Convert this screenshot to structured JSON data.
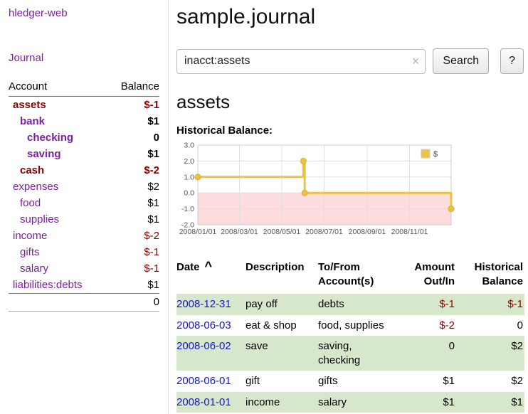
{
  "app_title": "hledger-web",
  "sidebar": {
    "journal_link": "Journal",
    "accounts_table": {
      "account_header": "Account",
      "balance_header": "Balance",
      "rows": [
        {
          "name": "assets",
          "balance": "$-1",
          "indent": 0,
          "bold": true,
          "name_style": "negative",
          "balance_style": "negative"
        },
        {
          "name": "bank",
          "balance": "$1",
          "indent": 1,
          "bold": true,
          "name_style": "link",
          "balance_style": "normal"
        },
        {
          "name": "checking",
          "balance": "0",
          "indent": 2,
          "bold": true,
          "name_style": "link",
          "balance_style": "normal"
        },
        {
          "name": "saving",
          "balance": "$1",
          "indent": 2,
          "bold": true,
          "name_style": "link",
          "balance_style": "normal"
        },
        {
          "name": "cash",
          "balance": "$-2",
          "indent": 1,
          "bold": true,
          "name_style": "negative",
          "balance_style": "negative"
        },
        {
          "name": "expenses",
          "balance": "$2",
          "indent": 0,
          "bold": false,
          "name_style": "link",
          "balance_style": "normal"
        },
        {
          "name": "food",
          "balance": "$1",
          "indent": 1,
          "bold": false,
          "name_style": "link",
          "balance_style": "normal"
        },
        {
          "name": "supplies",
          "balance": "$1",
          "indent": 1,
          "bold": false,
          "name_style": "link",
          "balance_style": "normal"
        },
        {
          "name": "income",
          "balance": "$-2",
          "indent": 0,
          "bold": false,
          "name_style": "link",
          "balance_style": "negative"
        },
        {
          "name": "gifts",
          "balance": "$-1",
          "indent": 1,
          "bold": false,
          "name_style": "link",
          "balance_style": "negative"
        },
        {
          "name": "salary",
          "balance": "$-1",
          "indent": 1,
          "bold": false,
          "name_style": "link",
          "balance_style": "negative"
        },
        {
          "name": "liabilities:debts",
          "balance": "$1",
          "indent": 0,
          "bold": false,
          "name_style": "link",
          "balance_style": "normal"
        }
      ],
      "total": "0"
    }
  },
  "main": {
    "title": "sample.journal",
    "search": {
      "value": "inacct:assets",
      "clear_icon": "×",
      "search_button": "Search",
      "help_button": "?"
    },
    "account_heading": "assets",
    "chart_title": "Historical Balance:"
  },
  "chart_data": {
    "type": "line",
    "step": true,
    "title": "Historical Balance",
    "series": [
      {
        "name": "$",
        "color": "#edc240",
        "points": [
          [
            "2008-01-01",
            1
          ],
          [
            "2008-06-01",
            2
          ],
          [
            "2008-06-03",
            0
          ],
          [
            "2008-12-31",
            -1
          ]
        ]
      }
    ],
    "x_domain": [
      "2008-01-01",
      "2008-12-31"
    ],
    "x_ticks": [
      "2008/01/01",
      "2008/03/01",
      "2008/05/01",
      "2008/07/01",
      "2008/09/01",
      "2008/11/01"
    ],
    "y_ticks": [
      3.0,
      2.0,
      1.0,
      0.0,
      -1.0,
      -2.0
    ],
    "ylim": [
      -2,
      3
    ],
    "grid": true,
    "negative_region_color": "#fcdcdc",
    "legend_label": "$",
    "legend_position": "top-right"
  },
  "transactions": {
    "headers": {
      "date": "Date",
      "description": "Description",
      "account": "To/From Account(s)",
      "amount": "Amount Out/In",
      "balance": "Historical Balance"
    },
    "sort_icon": "^",
    "rows": [
      {
        "date": "2008-12-31",
        "description": "pay off",
        "account": "debts",
        "amount": "$-1",
        "amount_negative": true,
        "balance": "$-1",
        "balance_negative": true,
        "shaded": true
      },
      {
        "date": "2008-06-03",
        "description": "eat & shop",
        "account": "food, supplies",
        "amount": "$-2",
        "amount_negative": true,
        "balance": "0",
        "balance_negative": false,
        "shaded": false
      },
      {
        "date": "2008-06-02",
        "description": "save",
        "account": "saving, checking",
        "amount": "0",
        "amount_negative": false,
        "balance": "$2",
        "balance_negative": false,
        "shaded": true
      },
      {
        "date": "2008-06-01",
        "description": "gift",
        "account": "gifts",
        "amount": "$1",
        "amount_negative": false,
        "balance": "$2",
        "balance_negative": false,
        "shaded": false
      },
      {
        "date": "2008-01-01",
        "description": "income",
        "account": "salary",
        "amount": "$1",
        "amount_negative": false,
        "balance": "$1",
        "balance_negative": false,
        "shaded": true
      }
    ]
  },
  "colors": {
    "link_purple": "#7b1fa2",
    "negative_red": "#8b0000",
    "date_link_blue": "#1414cc",
    "row_green": "#d7e7cc",
    "series_gold": "#edc240"
  }
}
